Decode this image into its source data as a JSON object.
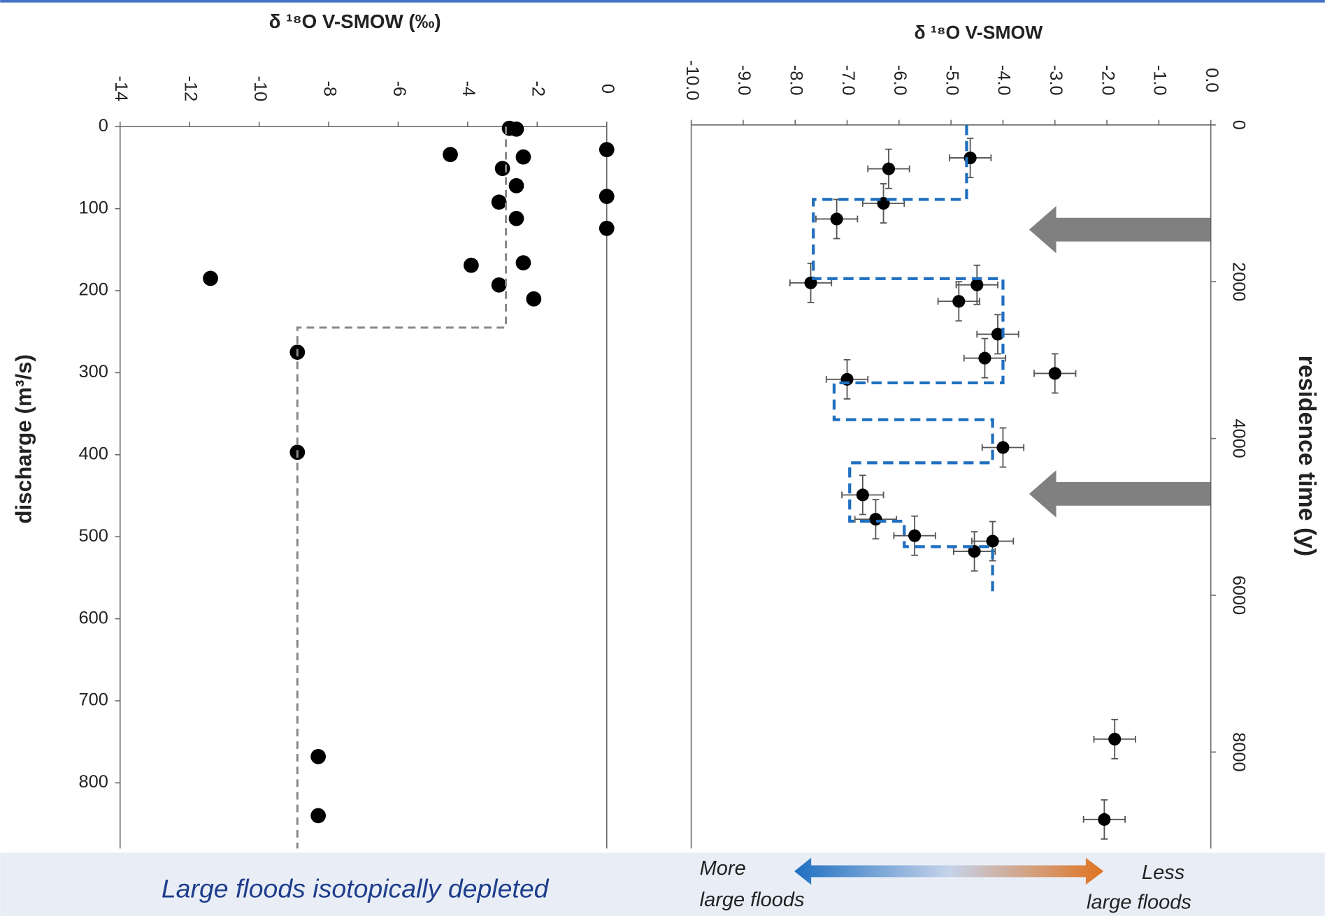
{
  "chart_data": [
    {
      "type": "scatter",
      "x_label": "δ ¹⁸O V-SMOW (‰)",
      "y_label": "discharge (m³/s)",
      "annotation": "Large floods isotopically depleted",
      "xlim": [
        -14,
        0
      ],
      "xticks": [
        -14,
        -12,
        -10,
        -8,
        -6,
        -4,
        -2,
        0
      ],
      "ylim": [
        0,
        880
      ],
      "yticks": [
        0,
        100,
        200,
        300,
        400,
        500,
        600,
        700,
        800
      ],
      "y_inverted": true,
      "series": [
        {
          "type": "scatter",
          "color": "#000000",
          "x": [
            -2.8,
            -2.6,
            -4.5,
            -2.4,
            0,
            -3.0,
            -2.6,
            0,
            -3.1,
            -2.6,
            0,
            -11.4,
            -3.9,
            -2.4,
            -3.1,
            -2.1,
            -8.9,
            -8.9,
            -8.3,
            -8.3
          ],
          "values": [
            2,
            3,
            34,
            37,
            28,
            51,
            72,
            85,
            92,
            112,
            124,
            185,
            169,
            166,
            193,
            210,
            275,
            397,
            768,
            840
          ]
        },
        {
          "type": "line",
          "color": "#888888",
          "dashed": true,
          "x": [
            -2.9,
            -2.9,
            -8.9,
            -8.9
          ],
          "values": [
            0,
            245,
            245,
            880
          ]
        }
      ]
    },
    {
      "type": "scatter",
      "x_label": "δ ¹⁸O V-SMOW",
      "y_label": "residence time (y)",
      "annotations": [
        [
          "More",
          "large floods"
        ],
        [
          "Less",
          "large floods"
        ]
      ],
      "xlim": [
        -10,
        0
      ],
      "xticks": [
        {
          "value": -10,
          "label": "-10.0"
        },
        {
          "value": -9,
          "label": "-9.0"
        },
        {
          "value": -8,
          "label": "-8.0"
        },
        {
          "value": -7,
          "label": "-7.0"
        },
        {
          "value": -6,
          "label": "-6.0"
        },
        {
          "value": -5,
          "label": "-5.0"
        },
        {
          "value": -4,
          "label": "-4.0"
        },
        {
          "value": -3,
          "label": "-3.0"
        },
        {
          "value": -2,
          "label": "-2.0"
        },
        {
          "value": -1,
          "label": "-1.0"
        },
        {
          "value": 0,
          "label": "0.0"
        }
      ],
      "ylim": [
        0,
        9230
      ],
      "yticks": [
        0,
        2000,
        4000,
        6000,
        8000
      ],
      "y_inverted": true,
      "series": [
        {
          "type": "scatter",
          "color": "#000000",
          "x": [
            -4.63,
            -6.2,
            -6.3,
            -7.2,
            -7.7,
            -4.5,
            -4.85,
            -4.1,
            -4.35,
            -3.0,
            -7.0,
            -4.0,
            -6.7,
            -6.45,
            -5.7,
            -4.2,
            -4.55,
            -1.85,
            -2.05
          ],
          "values": [
            420,
            560,
            1000,
            1200,
            2015,
            2040,
            2250,
            2670,
            2975,
            3170,
            3245,
            4115,
            4720,
            5030,
            5240,
            5310,
            5440,
            7835,
            8860
          ],
          "xerr": [
            0.4,
            0.4,
            0.4,
            0.4,
            0.4,
            0.4,
            0.4,
            0.4,
            0.4,
            0.4,
            0.4,
            0.4,
            0.4,
            0.4,
            0.4,
            0.4,
            0.4,
            0.4,
            0.4
          ],
          "yerr": [
            250,
            250,
            250,
            250,
            250,
            250,
            250,
            250,
            250,
            250,
            250,
            250,
            250,
            250,
            250,
            250,
            250,
            250,
            250
          ]
        },
        {
          "type": "line",
          "color": "#1f6fc0",
          "dashed": true,
          "x": [
            -4.7,
            -4.7,
            -7.65,
            -7.65,
            -4.0,
            -4.0,
            -7.25,
            -7.25,
            -4.2,
            -4.2,
            -6.95,
            -6.95,
            -5.9,
            -5.9,
            -4.2,
            -4.2
          ],
          "values": [
            0,
            950,
            950,
            1960,
            1960,
            3290,
            3290,
            3760,
            3760,
            4310,
            4310,
            5055,
            5055,
            5380,
            5380,
            5950
          ]
        }
      ]
    }
  ]
}
